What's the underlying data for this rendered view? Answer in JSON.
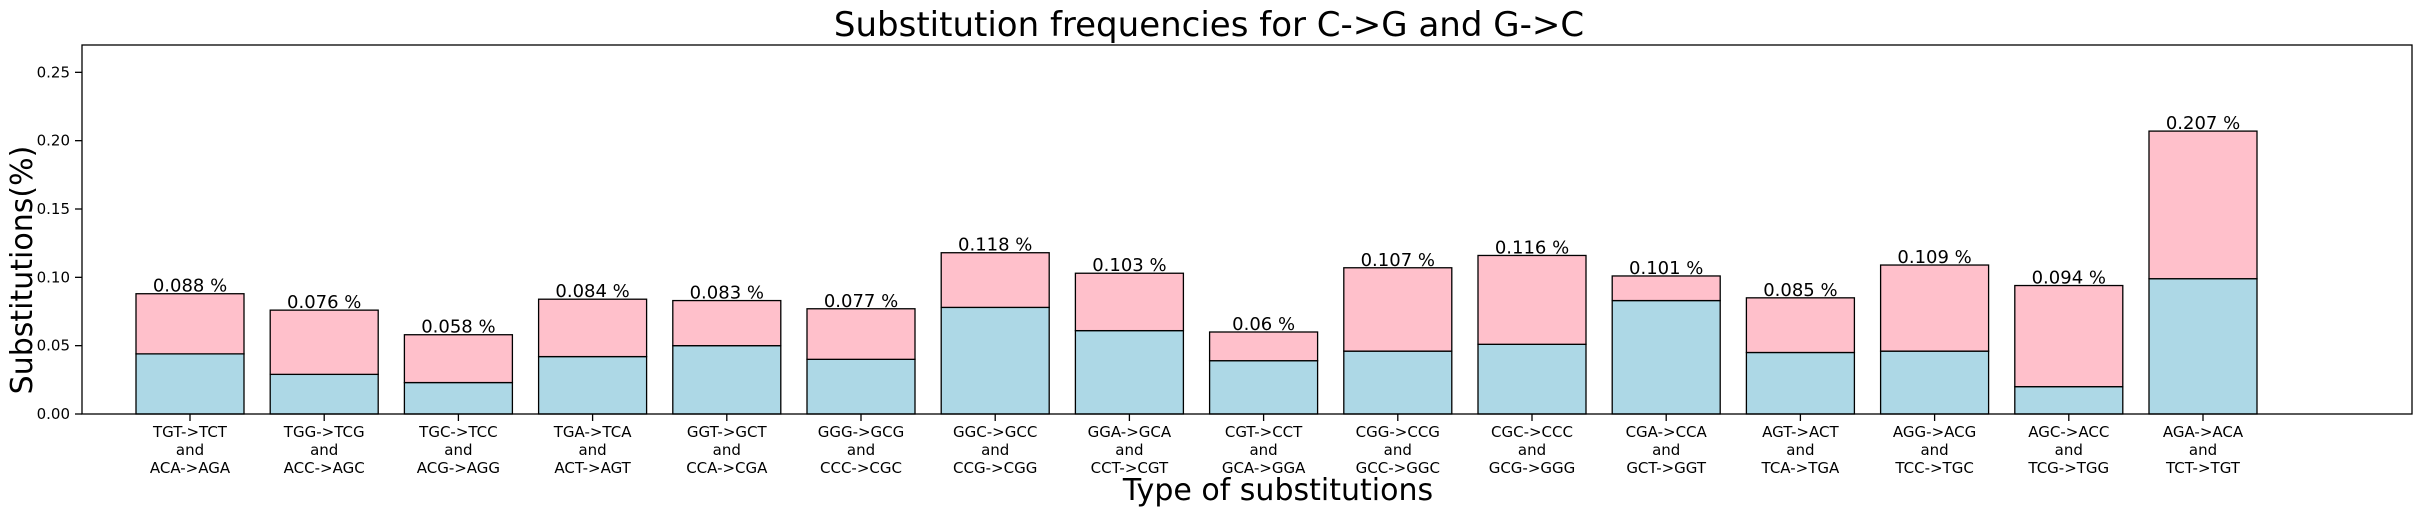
{
  "chart_data": {
    "type": "bar",
    "stacked": true,
    "title": "Substitution frequencies for C->G and G->C",
    "xlabel": "Type of substitutions",
    "ylabel": "Substitutions(%)",
    "ylim": [
      0,
      0.27
    ],
    "yticks": [
      "0.00",
      "0.05",
      "0.10",
      "0.15",
      "0.20",
      "0.25"
    ],
    "grid": false,
    "colors": {
      "lower": "#add8e6",
      "upper": "#ffc0cb",
      "edge": "#000000"
    },
    "categories": [
      [
        "TGT->TCT",
        "and",
        "ACA->AGA"
      ],
      [
        "TGG->TCG",
        "and",
        "ACC->AGC"
      ],
      [
        "TGC->TCC",
        "and",
        "ACG->AGG"
      ],
      [
        "TGA->TCA",
        "and",
        "ACT->AGT"
      ],
      [
        "GGT->GCT",
        "and",
        "CCA->CGA"
      ],
      [
        "GGG->GCG",
        "and",
        "CCC->CGC"
      ],
      [
        "GGC->GCC",
        "and",
        "CCG->CGG"
      ],
      [
        "GGA->GCA",
        "and",
        "CCT->CGT"
      ],
      [
        "CGT->CCT",
        "and",
        "GCA->GGA"
      ],
      [
        "CGG->CCG",
        "and",
        "GCC->GGC"
      ],
      [
        "CGC->CCC",
        "and",
        "GCG->GGG"
      ],
      [
        "CGA->CCA",
        "and",
        "GCT->GGT"
      ],
      [
        "AGT->ACT",
        "and",
        "TCA->TGA"
      ],
      [
        "AGG->ACG",
        "and",
        "TCC->TGC"
      ],
      [
        "AGC->ACC",
        "and",
        "TCG->TGG"
      ],
      [
        "AGA->ACA",
        "and",
        "TCT->TGT"
      ]
    ],
    "lower_values": [
      0.044,
      0.029,
      0.023,
      0.042,
      0.05,
      0.04,
      0.078,
      0.061,
      0.039,
      0.046,
      0.051,
      0.083,
      0.045,
      0.046,
      0.02,
      0.099
    ],
    "totals": [
      0.088,
      0.076,
      0.058,
      0.084,
      0.083,
      0.077,
      0.118,
      0.103,
      0.06,
      0.107,
      0.116,
      0.101,
      0.085,
      0.109,
      0.094,
      0.207
    ],
    "total_labels": [
      "0.088 %",
      "0.076 %",
      "0.058 %",
      "0.084 %",
      "0.083 %",
      "0.077 %",
      "0.118 %",
      "0.103 %",
      "0.06 %",
      "0.107 %",
      "0.116 %",
      "0.101 %",
      "0.085 %",
      "0.109 %",
      "0.094 %",
      "0.207 %"
    ]
  }
}
